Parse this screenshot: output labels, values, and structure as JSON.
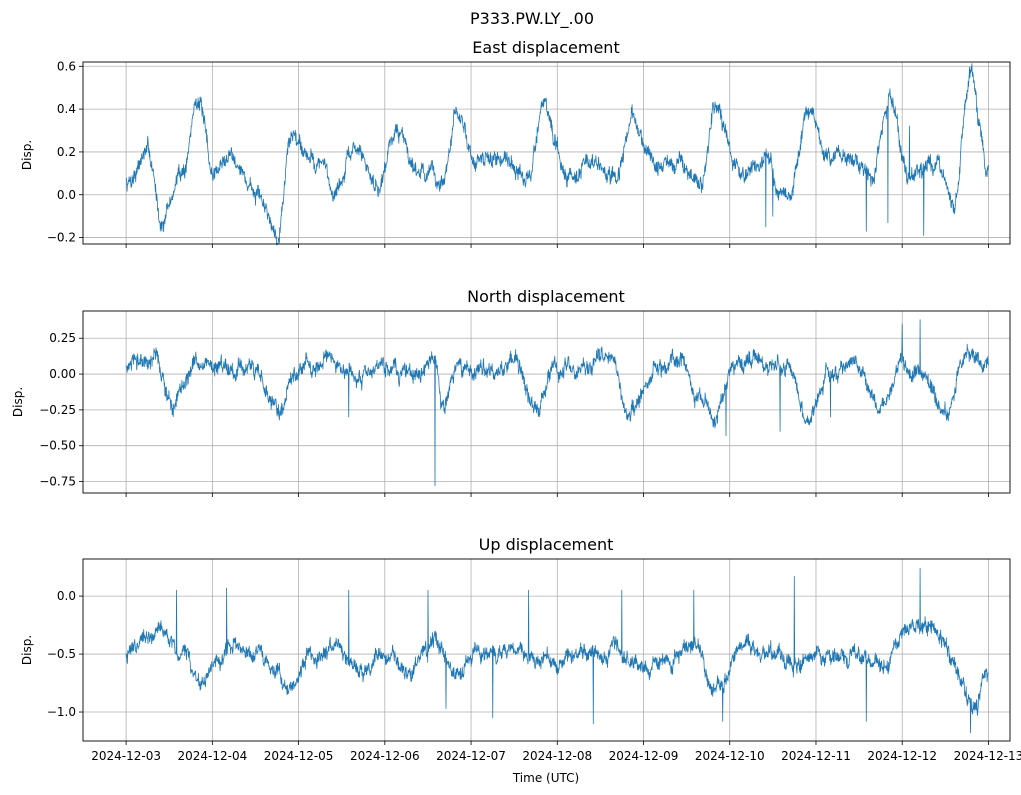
{
  "figure": {
    "title": "P333.PW.LY_.00",
    "xlabel": "Time (UTC)",
    "x_ticks": [
      "2024-12-03",
      "2024-12-04",
      "2024-12-05",
      "2024-12-06",
      "2024-12-07",
      "2024-12-08",
      "2024-12-09",
      "2024-12-10",
      "2024-12-11",
      "2024-12-12",
      "2024-12-13"
    ],
    "line_color": "#1f77b4",
    "grid_color": "#b0b0b0"
  },
  "chart_data": [
    {
      "type": "line",
      "title": "East displacement",
      "ylabel": "Disp.",
      "xlim": [
        "2024-12-02T12:00",
        "2024-12-13T06:00"
      ],
      "ylim": [
        -0.23,
        0.62
      ],
      "y_ticks": [
        -0.2,
        0.0,
        0.2,
        0.4,
        0.6
      ],
      "y_tick_labels": [
        "−0.2",
        "0.0",
        "0.2",
        "0.4",
        "0.6"
      ],
      "grid": true,
      "series": [
        {
          "x_start": "2024-12-03T00:00",
          "x_end": "2024-12-13T00:00",
          "keypoints": [
            [
              "2024-12-03T00:00",
              0.06
            ],
            [
              "2024-12-03T06:00",
              0.2
            ],
            [
              "2024-12-03T10:00",
              -0.12
            ],
            [
              "2024-12-03T16:00",
              0.12
            ],
            [
              "2024-12-03T20:00",
              0.46
            ],
            [
              "2024-12-04T00:00",
              0.1
            ],
            [
              "2024-12-04T06:00",
              0.2
            ],
            [
              "2024-12-04T10:00",
              0.05
            ],
            [
              "2024-12-04T14:00",
              -0.05
            ],
            [
              "2024-12-04T18:00",
              -0.17
            ],
            [
              "2024-12-04T22:00",
              0.28
            ],
            [
              "2024-12-05T06:00",
              0.15
            ],
            [
              "2024-12-05T10:00",
              0.02
            ],
            [
              "2024-12-05T16:00",
              0.21
            ],
            [
              "2024-12-05T22:00",
              0.05
            ],
            [
              "2024-12-06T03:00",
              0.3
            ],
            [
              "2024-12-06T10:00",
              0.12
            ],
            [
              "2024-12-06T16:00",
              0.05
            ],
            [
              "2024-12-06T20:00",
              0.36
            ],
            [
              "2024-12-07T02:00",
              0.15
            ],
            [
              "2024-12-07T10:00",
              0.18
            ],
            [
              "2024-12-07T16:00",
              0.06
            ],
            [
              "2024-12-07T20:00",
              0.43
            ],
            [
              "2024-12-08T02:00",
              0.1
            ],
            [
              "2024-12-08T10:00",
              0.15
            ],
            [
              "2024-12-08T16:00",
              0.05
            ],
            [
              "2024-12-08T21:00",
              0.34
            ],
            [
              "2024-12-09T04:00",
              0.12
            ],
            [
              "2024-12-09T10:00",
              0.15
            ],
            [
              "2024-12-09T16:00",
              0.05
            ],
            [
              "2024-12-09T20:00",
              0.42
            ],
            [
              "2024-12-10T02:00",
              0.1
            ],
            [
              "2024-12-10T10:00",
              0.15
            ],
            [
              "2024-12-10T16:00",
              -0.03
            ],
            [
              "2024-12-10T22:00",
              0.38
            ],
            [
              "2024-12-11T04:00",
              0.15
            ],
            [
              "2024-12-11T10:00",
              0.2
            ],
            [
              "2024-12-11T16:00",
              0.06
            ],
            [
              "2024-12-11T20:00",
              0.44
            ],
            [
              "2024-12-12T02:00",
              0.1
            ],
            [
              "2024-12-12T10:00",
              0.12
            ],
            [
              "2024-12-12T14:00",
              -0.08
            ],
            [
              "2024-12-12T19:00",
              0.56
            ],
            [
              "2024-12-13T00:00",
              0.12
            ]
          ],
          "spikes": [
            [
              "2024-12-10T10:00",
              -0.15
            ],
            [
              "2024-12-10T12:00",
              -0.1
            ],
            [
              "2024-12-11T14:00",
              -0.17
            ],
            [
              "2024-12-11T20:00",
              -0.13
            ],
            [
              "2024-12-12T06:00",
              -0.19
            ],
            [
              "2024-12-12T02:00",
              0.32
            ]
          ]
        }
      ]
    },
    {
      "type": "line",
      "title": "North displacement",
      "ylabel": "Disp.",
      "xlim": [
        "2024-12-02T12:00",
        "2024-12-13T06:00"
      ],
      "ylim": [
        -0.83,
        0.44
      ],
      "y_ticks": [
        -0.75,
        -0.5,
        -0.25,
        0.0,
        0.25
      ],
      "y_tick_labels": [
        "−0.75",
        "−0.50",
        "−0.25",
        "0.00",
        "0.25"
      ],
      "grid": true,
      "series": [
        {
          "x_start": "2024-12-03T00:00",
          "x_end": "2024-12-13T00:00",
          "keypoints": [
            [
              "2024-12-03T00:00",
              0.05
            ],
            [
              "2024-12-03T08:00",
              0.1
            ],
            [
              "2024-12-03T13:00",
              -0.24
            ],
            [
              "2024-12-03T20:00",
              0.1
            ],
            [
              "2024-12-04T06:00",
              0.05
            ],
            [
              "2024-12-04T12:00",
              0.08
            ],
            [
              "2024-12-04T18:00",
              -0.28
            ],
            [
              "2024-12-05T00:00",
              0.05
            ],
            [
              "2024-12-05T10:00",
              0.05
            ],
            [
              "2024-12-05T16:00",
              -0.05
            ],
            [
              "2024-12-06T00:00",
              0.05
            ],
            [
              "2024-12-06T08:00",
              0.0
            ],
            [
              "2024-12-06T14:00",
              0.1
            ],
            [
              "2024-12-06T16:00",
              -0.3
            ],
            [
              "2024-12-06T20:00",
              0.05
            ],
            [
              "2024-12-07T06:00",
              0.05
            ],
            [
              "2024-12-07T12:00",
              0.1
            ],
            [
              "2024-12-07T18:00",
              -0.25
            ],
            [
              "2024-12-08T00:00",
              0.05
            ],
            [
              "2024-12-08T08:00",
              0.02
            ],
            [
              "2024-12-08T14:00",
              0.15
            ],
            [
              "2024-12-08T20:00",
              -0.25
            ],
            [
              "2024-12-09T04:00",
              0.05
            ],
            [
              "2024-12-09T10:00",
              0.1
            ],
            [
              "2024-12-09T16:00",
              -0.15
            ],
            [
              "2024-12-09T20:00",
              -0.3
            ],
            [
              "2024-12-10T02:00",
              0.1
            ],
            [
              "2024-12-10T10:00",
              0.05
            ],
            [
              "2024-12-10T16:00",
              0.05
            ],
            [
              "2024-12-10T22:00",
              -0.35
            ],
            [
              "2024-12-11T04:00",
              0.05
            ],
            [
              "2024-12-11T12:00",
              0.05
            ],
            [
              "2024-12-11T18:00",
              -0.25
            ],
            [
              "2024-12-12T00:00",
              0.1
            ],
            [
              "2024-12-12T06:00",
              0.0
            ],
            [
              "2024-12-12T12:00",
              -0.3
            ],
            [
              "2024-12-12T18:00",
              0.15
            ],
            [
              "2024-12-13T00:00",
              0.05
            ]
          ],
          "spikes": [
            [
              "2024-12-06T14:00",
              -0.78
            ],
            [
              "2024-12-05T14:00",
              -0.3
            ],
            [
              "2024-12-09T23:00",
              -0.43
            ],
            [
              "2024-12-10T14:00",
              -0.4
            ],
            [
              "2024-12-12T00:00",
              0.35
            ],
            [
              "2024-12-12T05:00",
              0.38
            ],
            [
              "2024-12-11T04:00",
              -0.3
            ]
          ]
        }
      ]
    },
    {
      "type": "line",
      "title": "Up displacement",
      "ylabel": "Disp.",
      "xlim": [
        "2024-12-02T12:00",
        "2024-12-13T06:00"
      ],
      "ylim": [
        -1.25,
        0.32
      ],
      "y_ticks": [
        -1.0,
        -0.5,
        0.0
      ],
      "y_tick_labels": [
        "−1.0",
        "−0.5",
        "0.0"
      ],
      "grid": true,
      "series": [
        {
          "x_start": "2024-12-03T00:00",
          "x_end": "2024-12-13T00:00",
          "keypoints": [
            [
              "2024-12-03T00:00",
              -0.5
            ],
            [
              "2024-12-03T04:00",
              -0.35
            ],
            [
              "2024-12-03T10:00",
              -0.3
            ],
            [
              "2024-12-03T16:00",
              -0.5
            ],
            [
              "2024-12-03T22:00",
              -0.75
            ],
            [
              "2024-12-04T04:00",
              -0.5
            ],
            [
              "2024-12-04T10:00",
              -0.45
            ],
            [
              "2024-12-04T18:00",
              -0.6
            ],
            [
              "2024-12-04T22:00",
              -0.8
            ],
            [
              "2024-12-05T04:00",
              -0.5
            ],
            [
              "2024-12-05T10:00",
              -0.45
            ],
            [
              "2024-12-05T18:00",
              -0.65
            ],
            [
              "2024-12-06T00:00",
              -0.5
            ],
            [
              "2024-12-06T06:00",
              -0.6
            ],
            [
              "2024-12-06T14:00",
              -0.4
            ],
            [
              "2024-12-06T20:00",
              -0.7
            ],
            [
              "2024-12-07T04:00",
              -0.5
            ],
            [
              "2024-12-07T12:00",
              -0.45
            ],
            [
              "2024-12-07T20:00",
              -0.6
            ],
            [
              "2024-12-08T04:00",
              -0.55
            ],
            [
              "2024-12-08T10:00",
              -0.5
            ],
            [
              "2024-12-08T16:00",
              -0.4
            ],
            [
              "2024-12-08T22:00",
              -0.65
            ],
            [
              "2024-12-09T06:00",
              -0.55
            ],
            [
              "2024-12-09T14:00",
              -0.45
            ],
            [
              "2024-12-09T20:00",
              -0.75
            ],
            [
              "2024-12-10T04:00",
              -0.45
            ],
            [
              "2024-12-10T12:00",
              -0.5
            ],
            [
              "2024-12-10T18:00",
              -0.6
            ],
            [
              "2024-12-11T02:00",
              -0.55
            ],
            [
              "2024-12-11T10:00",
              -0.5
            ],
            [
              "2024-12-11T18:00",
              -0.6
            ],
            [
              "2024-12-12T02:00",
              -0.3
            ],
            [
              "2024-12-12T08:00",
              -0.2
            ],
            [
              "2024-12-12T14:00",
              -0.55
            ],
            [
              "2024-12-12T20:00",
              -0.95
            ],
            [
              "2024-12-13T00:00",
              -0.7
            ]
          ],
          "spikes": [
            [
              "2024-12-03T14:00",
              0.05
            ],
            [
              "2024-12-04T04:00",
              0.07
            ],
            [
              "2024-12-05T14:00",
              0.05
            ],
            [
              "2024-12-06T12:00",
              0.05
            ],
            [
              "2024-12-06T17:00",
              -0.97
            ],
            [
              "2024-12-07T06:00",
              -1.05
            ],
            [
              "2024-12-07T16:00",
              0.05
            ],
            [
              "2024-12-08T10:00",
              -1.1
            ],
            [
              "2024-12-08T18:00",
              0.05
            ],
            [
              "2024-12-09T14:00",
              0.05
            ],
            [
              "2024-12-09T22:00",
              -1.08
            ],
            [
              "2024-12-10T18:00",
              0.17
            ],
            [
              "2024-12-11T14:00",
              -1.08
            ],
            [
              "2024-12-12T05:00",
              0.24
            ],
            [
              "2024-12-12T19:00",
              -1.18
            ]
          ]
        }
      ]
    }
  ]
}
